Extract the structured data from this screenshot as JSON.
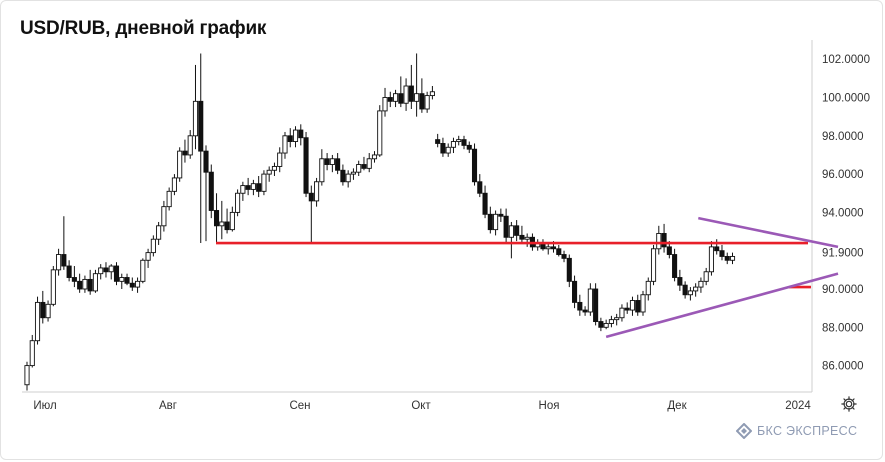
{
  "title": "USD/RUB, дневной график",
  "brand": {
    "name": "БКС ЭКСПРЕСС",
    "logo_icon": "bks-logo-icon",
    "color": "#8f9bb3"
  },
  "settings_icon": "gear-icon",
  "colors": {
    "support_line": "#e8202a",
    "triangle_lines": "#9b59b6",
    "axis_text": "#333333",
    "candle_up": "#ffffff",
    "candle_down": "#111111"
  },
  "chart_data": {
    "type": "candlestick",
    "x_tick_labels": [
      "Июл",
      "Авг",
      "Сен",
      "Окт",
      "Ноя",
      "Дек",
      "2024"
    ],
    "y_tick_labels": [
      "102.0000",
      "100.0000",
      "98.0000",
      "96.0000",
      "94.0000",
      "91.9000",
      "90.0000",
      "88.0000",
      "86.0000"
    ],
    "ylim": [
      84.6,
      103.1
    ],
    "grid": false,
    "candles": [
      {
        "o": 85.0,
        "h": 86.2,
        "l": 84.7,
        "c": 86.0
      },
      {
        "o": 86.0,
        "h": 87.6,
        "l": 85.9,
        "c": 87.3
      },
      {
        "o": 87.3,
        "h": 89.6,
        "l": 87.1,
        "c": 89.3
      },
      {
        "o": 89.3,
        "h": 89.9,
        "l": 88.2,
        "c": 88.5
      },
      {
        "o": 88.5,
        "h": 89.4,
        "l": 88.3,
        "c": 89.2
      },
      {
        "o": 89.2,
        "h": 91.2,
        "l": 89.1,
        "c": 91.0
      },
      {
        "o": 91.0,
        "h": 92.1,
        "l": 90.7,
        "c": 91.8
      },
      {
        "o": 91.8,
        "h": 93.8,
        "l": 91.0,
        "c": 91.2
      },
      {
        "o": 91.2,
        "h": 91.5,
        "l": 90.4,
        "c": 90.6
      },
      {
        "o": 90.6,
        "h": 91.2,
        "l": 90.1,
        "c": 90.4
      },
      {
        "o": 90.4,
        "h": 90.8,
        "l": 89.8,
        "c": 90.0
      },
      {
        "o": 90.0,
        "h": 90.7,
        "l": 89.8,
        "c": 90.5
      },
      {
        "o": 90.5,
        "h": 91.0,
        "l": 89.7,
        "c": 89.9
      },
      {
        "o": 89.9,
        "h": 91.0,
        "l": 89.8,
        "c": 90.8
      },
      {
        "o": 90.8,
        "h": 91.3,
        "l": 90.5,
        "c": 91.1
      },
      {
        "o": 91.1,
        "h": 91.4,
        "l": 90.6,
        "c": 90.9
      },
      {
        "o": 90.9,
        "h": 91.3,
        "l": 90.5,
        "c": 91.2
      },
      {
        "o": 91.2,
        "h": 91.4,
        "l": 90.2,
        "c": 90.4
      },
      {
        "o": 90.4,
        "h": 90.8,
        "l": 90.0,
        "c": 90.6
      },
      {
        "o": 90.6,
        "h": 90.8,
        "l": 90.2,
        "c": 90.3
      },
      {
        "o": 90.3,
        "h": 90.6,
        "l": 89.9,
        "c": 90.1
      },
      {
        "o": 90.1,
        "h": 90.6,
        "l": 89.8,
        "c": 90.4
      },
      {
        "o": 90.4,
        "h": 91.6,
        "l": 90.3,
        "c": 91.5
      },
      {
        "o": 91.5,
        "h": 92.1,
        "l": 91.1,
        "c": 91.9
      },
      {
        "o": 91.9,
        "h": 92.8,
        "l": 91.7,
        "c": 92.6
      },
      {
        "o": 92.6,
        "h": 93.5,
        "l": 92.3,
        "c": 93.3
      },
      {
        "o": 93.3,
        "h": 94.6,
        "l": 93.0,
        "c": 94.3
      },
      {
        "o": 94.3,
        "h": 95.3,
        "l": 94.1,
        "c": 95.1
      },
      {
        "o": 95.1,
        "h": 96.0,
        "l": 94.9,
        "c": 95.8
      },
      {
        "o": 95.8,
        "h": 97.4,
        "l": 95.6,
        "c": 97.2
      },
      {
        "o": 97.2,
        "h": 97.8,
        "l": 96.6,
        "c": 97.0
      },
      {
        "o": 97.0,
        "h": 98.3,
        "l": 96.8,
        "c": 98.0
      },
      {
        "o": 98.0,
        "h": 101.7,
        "l": 97.3,
        "c": 99.8
      },
      {
        "o": 99.8,
        "h": 102.3,
        "l": 92.4,
        "c": 97.2
      },
      {
        "o": 97.2,
        "h": 97.5,
        "l": 92.5,
        "c": 96.1
      },
      {
        "o": 96.1,
        "h": 96.5,
        "l": 93.7,
        "c": 94.1
      },
      {
        "o": 94.1,
        "h": 95.0,
        "l": 92.4,
        "c": 93.3
      },
      {
        "o": 93.3,
        "h": 94.6,
        "l": 92.6,
        "c": 93.5
      },
      {
        "o": 93.5,
        "h": 94.2,
        "l": 92.9,
        "c": 93.1
      },
      {
        "o": 93.1,
        "h": 94.3,
        "l": 93.0,
        "c": 94.0
      },
      {
        "o": 94.0,
        "h": 95.2,
        "l": 93.8,
        "c": 95.0
      },
      {
        "o": 95.0,
        "h": 95.6,
        "l": 94.6,
        "c": 95.4
      },
      {
        "o": 95.4,
        "h": 95.8,
        "l": 94.9,
        "c": 95.2
      },
      {
        "o": 95.2,
        "h": 95.7,
        "l": 94.9,
        "c": 95.5
      },
      {
        "o": 95.5,
        "h": 95.9,
        "l": 94.8,
        "c": 95.1
      },
      {
        "o": 95.1,
        "h": 96.2,
        "l": 94.9,
        "c": 96.0
      },
      {
        "o": 96.0,
        "h": 96.4,
        "l": 95.6,
        "c": 96.2
      },
      {
        "o": 96.2,
        "h": 96.6,
        "l": 95.9,
        "c": 96.4
      },
      {
        "o": 96.4,
        "h": 97.4,
        "l": 96.1,
        "c": 97.1
      },
      {
        "o": 97.1,
        "h": 98.2,
        "l": 96.8,
        "c": 98.0
      },
      {
        "o": 98.0,
        "h": 98.4,
        "l": 97.4,
        "c": 97.7
      },
      {
        "o": 97.7,
        "h": 98.5,
        "l": 97.4,
        "c": 98.3
      },
      {
        "o": 98.3,
        "h": 98.6,
        "l": 97.5,
        "c": 97.9
      },
      {
        "o": 97.9,
        "h": 98.2,
        "l": 94.8,
        "c": 95.0
      },
      {
        "o": 95.0,
        "h": 95.4,
        "l": 92.4,
        "c": 94.6
      },
      {
        "o": 94.6,
        "h": 95.8,
        "l": 94.3,
        "c": 95.6
      },
      {
        "o": 95.6,
        "h": 97.3,
        "l": 95.4,
        "c": 96.8
      },
      {
        "o": 96.8,
        "h": 97.1,
        "l": 96.2,
        "c": 96.5
      },
      {
        "o": 96.5,
        "h": 97.0,
        "l": 96.1,
        "c": 96.8
      },
      {
        "o": 96.8,
        "h": 97.1,
        "l": 96.0,
        "c": 96.2
      },
      {
        "o": 96.2,
        "h": 96.5,
        "l": 95.4,
        "c": 95.6
      },
      {
        "o": 95.6,
        "h": 96.2,
        "l": 95.3,
        "c": 96.0
      },
      {
        "o": 96.0,
        "h": 96.3,
        "l": 95.7,
        "c": 96.1
      },
      {
        "o": 96.1,
        "h": 96.7,
        "l": 95.9,
        "c": 96.5
      },
      {
        "o": 96.5,
        "h": 96.9,
        "l": 96.2,
        "c": 96.3
      },
      {
        "o": 96.3,
        "h": 97.1,
        "l": 96.1,
        "c": 96.8
      },
      {
        "o": 96.8,
        "h": 97.2,
        "l": 96.6,
        "c": 97.0
      },
      {
        "o": 97.0,
        "h": 99.6,
        "l": 96.9,
        "c": 99.3
      },
      {
        "o": 99.3,
        "h": 100.5,
        "l": 99.0,
        "c": 100.0
      },
      {
        "o": 100.0,
        "h": 100.3,
        "l": 99.5,
        "c": 99.8
      },
      {
        "o": 99.8,
        "h": 100.4,
        "l": 99.5,
        "c": 100.2
      },
      {
        "o": 100.2,
        "h": 101.1,
        "l": 99.5,
        "c": 99.7
      },
      {
        "o": 99.7,
        "h": 101.0,
        "l": 99.3,
        "c": 100.6
      },
      {
        "o": 100.6,
        "h": 101.7,
        "l": 99.4,
        "c": 99.8
      },
      {
        "o": 99.8,
        "h": 102.3,
        "l": 99.0,
        "c": 100.2
      },
      {
        "o": 100.2,
        "h": 101.0,
        "l": 99.2,
        "c": 99.4
      },
      {
        "o": 99.4,
        "h": 100.3,
        "l": 99.2,
        "c": 100.1
      },
      {
        "o": 100.1,
        "h": 100.6,
        "l": 99.9,
        "c": 100.3
      },
      {
        "o": 97.8,
        "h": 98.1,
        "l": 97.4,
        "c": 97.6
      },
      {
        "o": 97.6,
        "h": 97.9,
        "l": 96.9,
        "c": 97.1
      },
      {
        "o": 97.1,
        "h": 97.6,
        "l": 96.9,
        "c": 97.4
      },
      {
        "o": 97.4,
        "h": 97.9,
        "l": 97.1,
        "c": 97.7
      },
      {
        "o": 97.7,
        "h": 98.0,
        "l": 97.5,
        "c": 97.8
      },
      {
        "o": 97.8,
        "h": 98.0,
        "l": 97.3,
        "c": 97.5
      },
      {
        "o": 97.5,
        "h": 97.7,
        "l": 97.1,
        "c": 97.3
      },
      {
        "o": 97.3,
        "h": 97.6,
        "l": 95.4,
        "c": 95.6
      },
      {
        "o": 95.6,
        "h": 96.0,
        "l": 94.8,
        "c": 95.0
      },
      {
        "o": 95.0,
        "h": 95.4,
        "l": 93.7,
        "c": 93.9
      },
      {
        "o": 93.9,
        "h": 94.3,
        "l": 92.9,
        "c": 93.1
      },
      {
        "o": 93.1,
        "h": 94.1,
        "l": 92.8,
        "c": 93.9
      },
      {
        "o": 93.9,
        "h": 94.2,
        "l": 93.5,
        "c": 93.8
      },
      {
        "o": 93.8,
        "h": 94.2,
        "l": 92.4,
        "c": 92.7
      },
      {
        "o": 92.7,
        "h": 93.5,
        "l": 91.6,
        "c": 93.3
      },
      {
        "o": 93.3,
        "h": 93.6,
        "l": 92.5,
        "c": 92.8
      },
      {
        "o": 92.8,
        "h": 93.3,
        "l": 92.4,
        "c": 92.6
      },
      {
        "o": 92.6,
        "h": 92.9,
        "l": 92.2,
        "c": 92.7
      },
      {
        "o": 92.7,
        "h": 92.9,
        "l": 92.0,
        "c": 92.2
      },
      {
        "o": 92.2,
        "h": 92.6,
        "l": 92.0,
        "c": 92.4
      },
      {
        "o": 92.4,
        "h": 92.6,
        "l": 92.0,
        "c": 92.1
      },
      {
        "o": 92.1,
        "h": 92.4,
        "l": 91.8,
        "c": 92.2
      },
      {
        "o": 92.2,
        "h": 92.5,
        "l": 91.9,
        "c": 92.1
      },
      {
        "o": 92.1,
        "h": 92.3,
        "l": 91.7,
        "c": 91.8
      },
      {
        "o": 91.8,
        "h": 92.0,
        "l": 91.4,
        "c": 91.6
      },
      {
        "o": 91.6,
        "h": 91.8,
        "l": 90.1,
        "c": 90.4
      },
      {
        "o": 90.4,
        "h": 90.7,
        "l": 89.0,
        "c": 89.3
      },
      {
        "o": 89.3,
        "h": 89.7,
        "l": 88.6,
        "c": 88.9
      },
      {
        "o": 88.9,
        "h": 89.1,
        "l": 88.6,
        "c": 88.8
      },
      {
        "o": 88.8,
        "h": 90.3,
        "l": 88.6,
        "c": 90.0
      },
      {
        "o": 90.0,
        "h": 90.3,
        "l": 88.1,
        "c": 88.3
      },
      {
        "o": 88.3,
        "h": 88.5,
        "l": 87.8,
        "c": 88.0
      },
      {
        "o": 88.0,
        "h": 88.4,
        "l": 87.9,
        "c": 88.2
      },
      {
        "o": 88.2,
        "h": 88.6,
        "l": 88.0,
        "c": 88.4
      },
      {
        "o": 88.4,
        "h": 88.7,
        "l": 88.1,
        "c": 88.5
      },
      {
        "o": 88.5,
        "h": 89.2,
        "l": 88.3,
        "c": 89.0
      },
      {
        "o": 89.0,
        "h": 89.3,
        "l": 88.7,
        "c": 88.9
      },
      {
        "o": 88.9,
        "h": 89.6,
        "l": 88.6,
        "c": 89.4
      },
      {
        "o": 89.4,
        "h": 89.7,
        "l": 88.6,
        "c": 88.8
      },
      {
        "o": 88.8,
        "h": 89.9,
        "l": 88.6,
        "c": 89.7
      },
      {
        "o": 89.7,
        "h": 90.6,
        "l": 89.4,
        "c": 90.4
      },
      {
        "o": 90.4,
        "h": 92.3,
        "l": 90.2,
        "c": 92.1
      },
      {
        "o": 92.1,
        "h": 93.3,
        "l": 91.8,
        "c": 92.9
      },
      {
        "o": 92.9,
        "h": 93.4,
        "l": 91.9,
        "c": 92.2
      },
      {
        "o": 92.2,
        "h": 92.5,
        "l": 91.6,
        "c": 91.8
      },
      {
        "o": 91.8,
        "h": 92.1,
        "l": 90.4,
        "c": 90.6
      },
      {
        "o": 90.6,
        "h": 91.0,
        "l": 89.9,
        "c": 90.2
      },
      {
        "o": 90.2,
        "h": 90.4,
        "l": 89.5,
        "c": 89.7
      },
      {
        "o": 89.7,
        "h": 90.1,
        "l": 89.4,
        "c": 89.9
      },
      {
        "o": 89.9,
        "h": 90.3,
        "l": 89.6,
        "c": 90.1
      },
      {
        "o": 90.1,
        "h": 90.6,
        "l": 89.8,
        "c": 90.4
      },
      {
        "o": 90.4,
        "h": 91.1,
        "l": 90.2,
        "c": 90.9
      },
      {
        "o": 90.9,
        "h": 92.5,
        "l": 90.7,
        "c": 92.2
      },
      {
        "o": 92.2,
        "h": 92.6,
        "l": 91.8,
        "c": 92.0
      },
      {
        "o": 92.0,
        "h": 92.3,
        "l": 91.5,
        "c": 91.7
      },
      {
        "o": 91.7,
        "h": 91.9,
        "l": 91.3,
        "c": 91.5
      },
      {
        "o": 91.5,
        "h": 91.9,
        "l": 91.3,
        "c": 91.7
      }
    ],
    "support_levels": [
      {
        "value": 92.4,
        "color": "#e8202a"
      },
      {
        "value": 90.1,
        "color": "#e8202a"
      }
    ],
    "trend_lines": [
      {
        "name": "",
        "from": {
          "candle": 127.5,
          "value": 93.7
        },
        "to": {
          "candle": 151,
          "value": 92.2
        },
        "color": "#9b59b6"
      },
      {
        "name": "",
        "from": {
          "candle": 110,
          "value": 87.5
        },
        "to": {
          "candle": 151,
          "value": 90.8
        },
        "color": "#9b59b6"
      }
    ]
  }
}
